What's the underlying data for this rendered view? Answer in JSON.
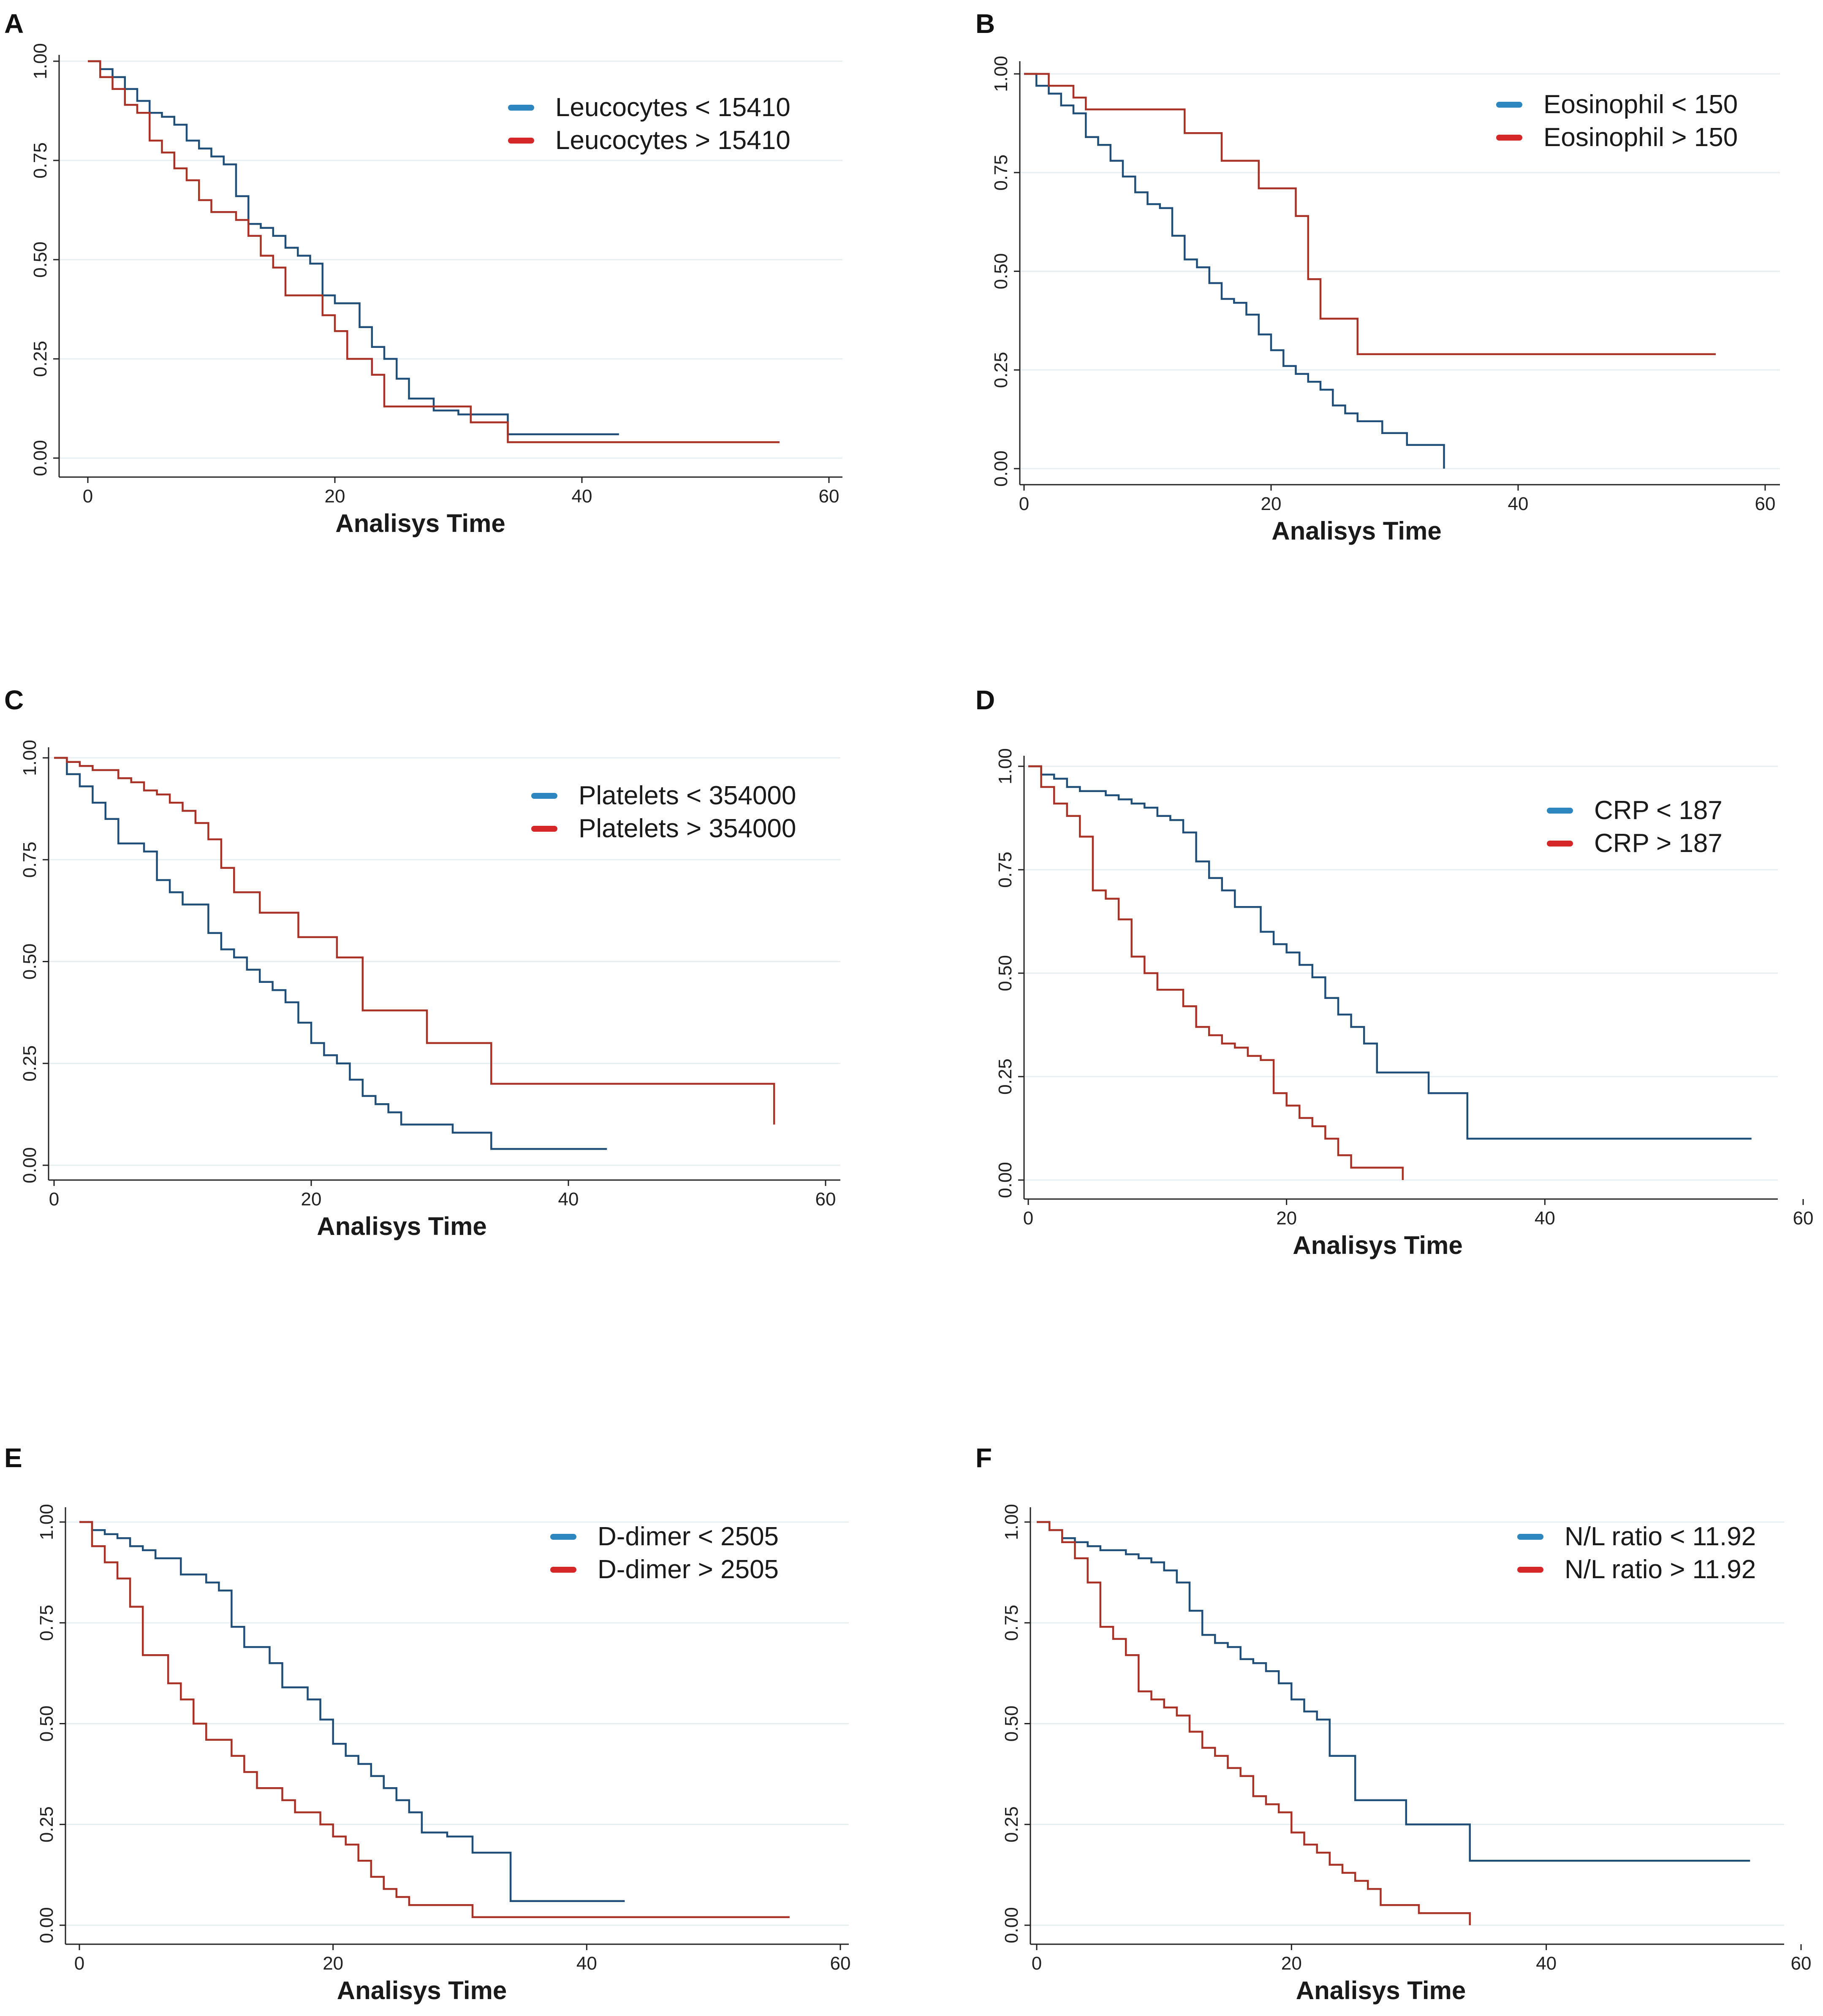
{
  "figure": {
    "background": "#ffffff"
  },
  "chart_data": [
    {
      "panel": "A",
      "type": "line",
      "step": true,
      "title": "",
      "xlabel": "Analisys Time",
      "ylabel": "",
      "xlim": [
        0,
        60
      ],
      "ylim": [
        0,
        1
      ],
      "xticks": [
        "0",
        "20",
        "40",
        "60"
      ],
      "yticks": [
        "0.00",
        "0.25",
        "0.50",
        "0.75",
        "1.00"
      ],
      "legend_position": "top-right",
      "series": [
        {
          "name": "Leucocytes < 15410",
          "color": "#1f4e79",
          "legend_color": "#2e86c1",
          "x": [
            0,
            1,
            2,
            3,
            4,
            5,
            6,
            7,
            8,
            9,
            10,
            11,
            12,
            13,
            14,
            15,
            16,
            17,
            18,
            19,
            20,
            21,
            22,
            23,
            24,
            25,
            26,
            27,
            28,
            30,
            34,
            43
          ],
          "y": [
            1,
            0.98,
            0.96,
            0.93,
            0.9,
            0.87,
            0.86,
            0.84,
            0.8,
            0.78,
            0.76,
            0.74,
            0.66,
            0.59,
            0.58,
            0.56,
            0.53,
            0.51,
            0.49,
            0.41,
            0.39,
            0.39,
            0.33,
            0.28,
            0.25,
            0.2,
            0.15,
            0.15,
            0.12,
            0.11,
            0.06,
            0.06
          ]
        },
        {
          "name": "Leucocytes > 15410",
          "color": "#a93226",
          "legend_color": "#d62728",
          "x": [
            0,
            1,
            2,
            3,
            4,
            5,
            6,
            7,
            8,
            9,
            10,
            12,
            13,
            14,
            15,
            16,
            19,
            20,
            21,
            23,
            24,
            29,
            31,
            34,
            56
          ],
          "y": [
            1,
            0.96,
            0.93,
            0.89,
            0.87,
            0.8,
            0.77,
            0.73,
            0.7,
            0.65,
            0.62,
            0.6,
            0.56,
            0.51,
            0.48,
            0.41,
            0.36,
            0.32,
            0.25,
            0.21,
            0.13,
            0.13,
            0.09,
            0.04,
            0.04
          ]
        }
      ]
    },
    {
      "panel": "B",
      "type": "line",
      "step": true,
      "title": "",
      "xlabel": "Analisys Time",
      "ylabel": "",
      "xlim": [
        0,
        60
      ],
      "ylim": [
        0,
        1
      ],
      "xticks": [
        "0",
        "20",
        "40",
        "60"
      ],
      "yticks": [
        "0.00",
        "0.25",
        "0.50",
        "0.75",
        "1.00"
      ],
      "legend_position": "top-right",
      "series": [
        {
          "name": "Eosinophil < 150",
          "color": "#1f4e79",
          "legend_color": "#2e86c1",
          "x": [
            0,
            1,
            2,
            3,
            4,
            5,
            6,
            7,
            8,
            9,
            10,
            11,
            12,
            13,
            14,
            15,
            16,
            17,
            18,
            19,
            20,
            21,
            22,
            23,
            24,
            25,
            26,
            27,
            29,
            31,
            34
          ],
          "y": [
            1,
            0.97,
            0.95,
            0.92,
            0.9,
            0.84,
            0.82,
            0.78,
            0.74,
            0.7,
            0.67,
            0.66,
            0.59,
            0.53,
            0.51,
            0.47,
            0.43,
            0.42,
            0.39,
            0.34,
            0.3,
            0.26,
            0.24,
            0.22,
            0.2,
            0.16,
            0.14,
            0.12,
            0.09,
            0.06,
            0
          ]
        },
        {
          "name": "Eosinophil  > 150",
          "color": "#a93226",
          "legend_color": "#d62728",
          "x": [
            0,
            2,
            4,
            5,
            13,
            16,
            19,
            22,
            23,
            24,
            27,
            56
          ],
          "y": [
            1,
            0.97,
            0.94,
            0.91,
            0.85,
            0.78,
            0.71,
            0.64,
            0.48,
            0.38,
            0.29,
            0.29
          ]
        }
      ]
    },
    {
      "panel": "C",
      "type": "line",
      "step": true,
      "title": "",
      "xlabel": "Analisys Time",
      "ylabel": "",
      "xlim": [
        0,
        60
      ],
      "ylim": [
        0,
        1
      ],
      "xticks": [
        "0",
        "20",
        "40",
        "60"
      ],
      "yticks": [
        "0.00",
        "0.25",
        "0.50",
        "0.75",
        "1.00"
      ],
      "legend_position": "top-right",
      "series": [
        {
          "name": "Platelets < 354000",
          "color": "#1f4e79",
          "legend_color": "#2e86c1",
          "x": [
            0,
            1,
            2,
            3,
            4,
            5,
            7,
            8,
            9,
            10,
            12,
            13,
            14,
            15,
            16,
            17,
            18,
            19,
            20,
            21,
            22,
            23,
            24,
            25,
            26,
            27,
            31,
            34,
            43
          ],
          "y": [
            1,
            0.96,
            0.93,
            0.89,
            0.85,
            0.79,
            0.77,
            0.7,
            0.67,
            0.64,
            0.57,
            0.53,
            0.51,
            0.48,
            0.45,
            0.43,
            0.4,
            0.35,
            0.3,
            0.27,
            0.25,
            0.21,
            0.17,
            0.15,
            0.13,
            0.1,
            0.08,
            0.04,
            0.04
          ]
        },
        {
          "name": "Platelets > 354000",
          "color": "#a93226",
          "legend_color": "#d62728",
          "x": [
            0,
            1,
            2,
            3,
            5,
            6,
            7,
            8,
            9,
            10,
            11,
            12,
            13,
            14,
            16,
            19,
            22,
            24,
            29,
            34,
            56
          ],
          "y": [
            1,
            0.99,
            0.98,
            0.97,
            0.95,
            0.94,
            0.92,
            0.91,
            0.89,
            0.87,
            0.84,
            0.8,
            0.73,
            0.67,
            0.62,
            0.56,
            0.51,
            0.38,
            0.3,
            0.2,
            0.1
          ]
        }
      ]
    },
    {
      "panel": "D",
      "type": "line",
      "step": true,
      "title": "",
      "xlabel": "Analisys Time",
      "ylabel": "",
      "xlim": [
        0,
        60
      ],
      "ylim": [
        0,
        1
      ],
      "xticks": [
        "0",
        "20",
        "40",
        "60"
      ],
      "yticks": [
        "0.00",
        "0.25",
        "0.50",
        "0.75",
        "1.00"
      ],
      "legend_position": "top-right",
      "series": [
        {
          "name": "CRP < 187",
          "color": "#1f4e79",
          "legend_color": "#2e86c1",
          "x": [
            0,
            1,
            2,
            3,
            4,
            6,
            7,
            8,
            9,
            10,
            11,
            12,
            13,
            14,
            15,
            16,
            18,
            19,
            20,
            21,
            22,
            23,
            24,
            25,
            26,
            27,
            31,
            34,
            56
          ],
          "y": [
            1,
            0.98,
            0.97,
            0.95,
            0.94,
            0.93,
            0.92,
            0.91,
            0.9,
            0.88,
            0.87,
            0.84,
            0.77,
            0.73,
            0.7,
            0.66,
            0.6,
            0.57,
            0.55,
            0.52,
            0.49,
            0.44,
            0.4,
            0.37,
            0.33,
            0.26,
            0.21,
            0.1,
            0.1
          ]
        },
        {
          "name": "CRP > 187",
          "color": "#a93226",
          "legend_color": "#d62728",
          "x": [
            0,
            1,
            2,
            3,
            4,
            5,
            6,
            7,
            8,
            9,
            10,
            12,
            13,
            14,
            15,
            16,
            17,
            18,
            19,
            20,
            21,
            22,
            23,
            24,
            25,
            29
          ],
          "y": [
            1,
            0.95,
            0.91,
            0.88,
            0.83,
            0.7,
            0.68,
            0.63,
            0.54,
            0.5,
            0.46,
            0.42,
            0.37,
            0.35,
            0.33,
            0.32,
            0.3,
            0.29,
            0.21,
            0.18,
            0.15,
            0.13,
            0.1,
            0.06,
            0.03,
            0
          ]
        }
      ]
    },
    {
      "panel": "E",
      "type": "line",
      "step": true,
      "title": "",
      "xlabel": "Analisys Time",
      "ylabel": "",
      "xlim": [
        0,
        60
      ],
      "ylim": [
        0,
        1
      ],
      "xticks": [
        "0",
        "20",
        "40",
        "60"
      ],
      "yticks": [
        "0.00",
        "0.25",
        "0.50",
        "0.75",
        "1.00"
      ],
      "legend_position": "top-right",
      "series": [
        {
          "name": "D-dimer < 2505",
          "color": "#1f4e79",
          "legend_color": "#2e86c1",
          "x": [
            0,
            1,
            2,
            3,
            4,
            5,
            6,
            8,
            10,
            11,
            12,
            13,
            15,
            16,
            18,
            19,
            20,
            21,
            22,
            23,
            24,
            25,
            26,
            27,
            29,
            31,
            34,
            43
          ],
          "y": [
            1,
            0.98,
            0.97,
            0.96,
            0.94,
            0.93,
            0.91,
            0.87,
            0.85,
            0.83,
            0.74,
            0.69,
            0.65,
            0.59,
            0.56,
            0.51,
            0.45,
            0.42,
            0.4,
            0.37,
            0.34,
            0.31,
            0.28,
            0.23,
            0.22,
            0.18,
            0.06,
            0.06
          ]
        },
        {
          "name": "D-dimer > 2505",
          "color": "#a93226",
          "legend_color": "#d62728",
          "x": [
            0,
            1,
            2,
            3,
            4,
            5,
            7,
            8,
            9,
            10,
            12,
            13,
            14,
            16,
            17,
            19,
            20,
            21,
            22,
            23,
            24,
            25,
            26,
            27,
            31,
            56
          ],
          "y": [
            1,
            0.94,
            0.9,
            0.86,
            0.79,
            0.67,
            0.6,
            0.56,
            0.5,
            0.46,
            0.42,
            0.38,
            0.34,
            0.31,
            0.28,
            0.25,
            0.22,
            0.2,
            0.16,
            0.12,
            0.09,
            0.07,
            0.05,
            0.05,
            0.02,
            0.02
          ]
        }
      ]
    },
    {
      "panel": "F",
      "type": "line",
      "step": true,
      "title": "",
      "xlabel": "Analisys Time",
      "ylabel": "",
      "xlim": [
        0,
        60
      ],
      "ylim": [
        0,
        1
      ],
      "xticks": [
        "0",
        "20",
        "40",
        "60"
      ],
      "yticks": [
        "0.00",
        "0.25",
        "0.50",
        "0.75",
        "1.00"
      ],
      "legend_position": "top-right",
      "series": [
        {
          "name": "N/L ratio < 11.92",
          "color": "#1f4e79",
          "legend_color": "#2e86c1",
          "x": [
            0,
            1,
            2,
            3,
            4,
            5,
            6,
            7,
            8,
            9,
            10,
            11,
            12,
            13,
            14,
            15,
            16,
            17,
            18,
            19,
            20,
            21,
            22,
            23,
            25,
            29,
            34,
            56
          ],
          "y": [
            1,
            0.98,
            0.96,
            0.95,
            0.94,
            0.93,
            0.93,
            0.92,
            0.91,
            0.9,
            0.88,
            0.85,
            0.78,
            0.72,
            0.7,
            0.69,
            0.66,
            0.65,
            0.63,
            0.6,
            0.56,
            0.53,
            0.51,
            0.42,
            0.31,
            0.25,
            0.16,
            0.16
          ]
        },
        {
          "name": "N/L ratio > 11.92",
          "color": "#a93226",
          "legend_color": "#d62728",
          "x": [
            0,
            1,
            2,
            3,
            4,
            5,
            6,
            7,
            8,
            9,
            10,
            11,
            12,
            13,
            14,
            15,
            16,
            17,
            18,
            19,
            20,
            21,
            22,
            23,
            24,
            25,
            26,
            27,
            30,
            34
          ],
          "y": [
            1,
            0.98,
            0.95,
            0.91,
            0.85,
            0.74,
            0.71,
            0.67,
            0.58,
            0.56,
            0.54,
            0.52,
            0.48,
            0.44,
            0.42,
            0.39,
            0.37,
            0.32,
            0.3,
            0.28,
            0.23,
            0.2,
            0.18,
            0.15,
            0.13,
            0.11,
            0.09,
            0.05,
            0.03,
            0
          ]
        }
      ]
    }
  ]
}
